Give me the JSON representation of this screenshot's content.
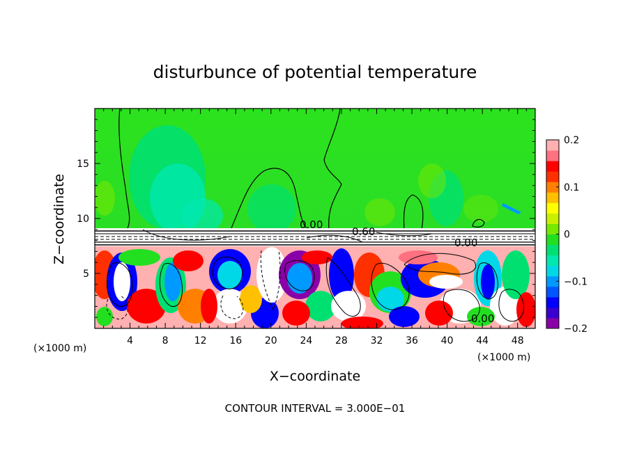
{
  "chart_data": {
    "type": "heatmap",
    "title": "disturbunce of potential temperature",
    "xlabel": "X−coordinate",
    "ylabel": "Z−coordinate",
    "x_unit": "(×1000 m)",
    "y_unit": "(×1000 m)",
    "xlim": [
      0,
      50
    ],
    "ylim": [
      0,
      20
    ],
    "x_ticks": [
      4,
      8,
      12,
      16,
      20,
      24,
      28,
      32,
      36,
      40,
      44,
      48
    ],
    "y_ticks": [
      5,
      10,
      15
    ],
    "colorbar": {
      "vmin": -0.2,
      "vmax": 0.2,
      "ticks": [
        0.2,
        0.1,
        0,
        -0.1,
        -0.2
      ],
      "tick_labels": [
        "0.2",
        "0.1",
        "0",
        "−0.1",
        "−0.2"
      ],
      "colors": [
        "#8a00a8",
        "#3a00d0",
        "#0000ff",
        "#0055ff",
        "#0099ff",
        "#00d8e8",
        "#00e8b0",
        "#00e070",
        "#22e020",
        "#77e800",
        "#c8f000",
        "#ffff00",
        "#ffc000",
        "#ff8000",
        "#ff3000",
        "#ff0000",
        "#ff7080",
        "#ffb0b0"
      ]
    },
    "contour_labels": [
      "0.00",
      "0.60",
      "0.00",
      "0.00"
    ],
    "footer": "CONTOUR INTERVAL = 3.000E−01",
    "grid": false
  }
}
